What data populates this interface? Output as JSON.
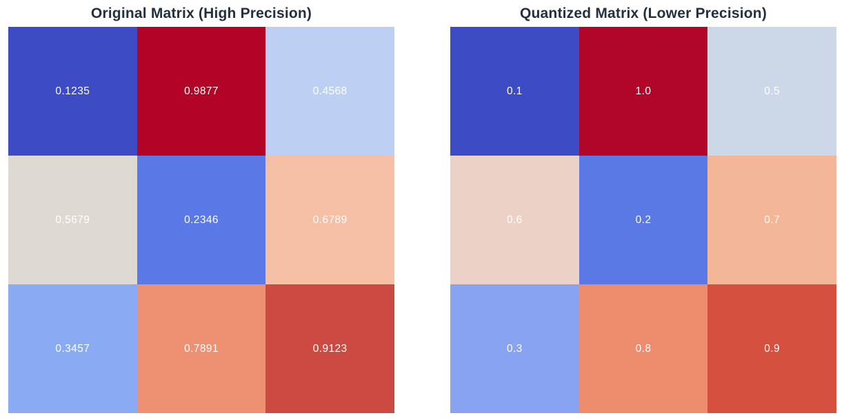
{
  "page": {
    "background": "#ffffff",
    "value_text_color": "#ffffff"
  },
  "chart_data": [
    {
      "type": "heatmap",
      "title": "Original Matrix (High Precision)",
      "title_color": "#223040",
      "colormap": "coolwarm",
      "rows": 3,
      "cols": 3,
      "value_range": [
        0,
        1
      ],
      "values": [
        [
          0.1235,
          0.9877,
          0.4568
        ],
        [
          0.5679,
          0.2346,
          0.6789
        ],
        [
          0.3457,
          0.7891,
          0.9123
        ]
      ],
      "labels": [
        [
          "0.1235",
          "0.9877",
          "0.4568"
        ],
        [
          "0.5679",
          "0.2346",
          "0.6789"
        ],
        [
          "0.3457",
          "0.7891",
          "0.9123"
        ]
      ],
      "cell_colors": [
        [
          "#3d4cc4",
          "#b30428",
          "#bdd0f3"
        ],
        [
          "#ded9d3",
          "#5a78e6",
          "#f5c0a6"
        ],
        [
          "#8aabf4",
          "#ee9072",
          "#cc4a41"
        ]
      ],
      "annotation_color": "#ffffff",
      "grid_lines": false,
      "legend": false
    },
    {
      "type": "heatmap",
      "title": "Quantized Matrix (Lower Precision)",
      "title_color": "#223040",
      "colormap": "coolwarm",
      "rows": 3,
      "cols": 3,
      "value_range": [
        0,
        1
      ],
      "values": [
        [
          0.1,
          1.0,
          0.5
        ],
        [
          0.6,
          0.2,
          0.7
        ],
        [
          0.3,
          0.8,
          0.9
        ]
      ],
      "labels": [
        [
          "0.1",
          "1.0",
          "0.5"
        ],
        [
          "0.6",
          "0.2",
          "0.7"
        ],
        [
          "0.3",
          "0.8",
          "0.9"
        ]
      ],
      "cell_colors": [
        [
          "#3d4cc4",
          "#b10529",
          "#ccd7e8"
        ],
        [
          "#ecd2c6",
          "#5b79e5",
          "#f3b698"
        ],
        [
          "#87a3f2",
          "#ee8c6e",
          "#d5503f"
        ]
      ],
      "annotation_color": "#ffffff",
      "grid_lines": false,
      "legend": false
    }
  ]
}
